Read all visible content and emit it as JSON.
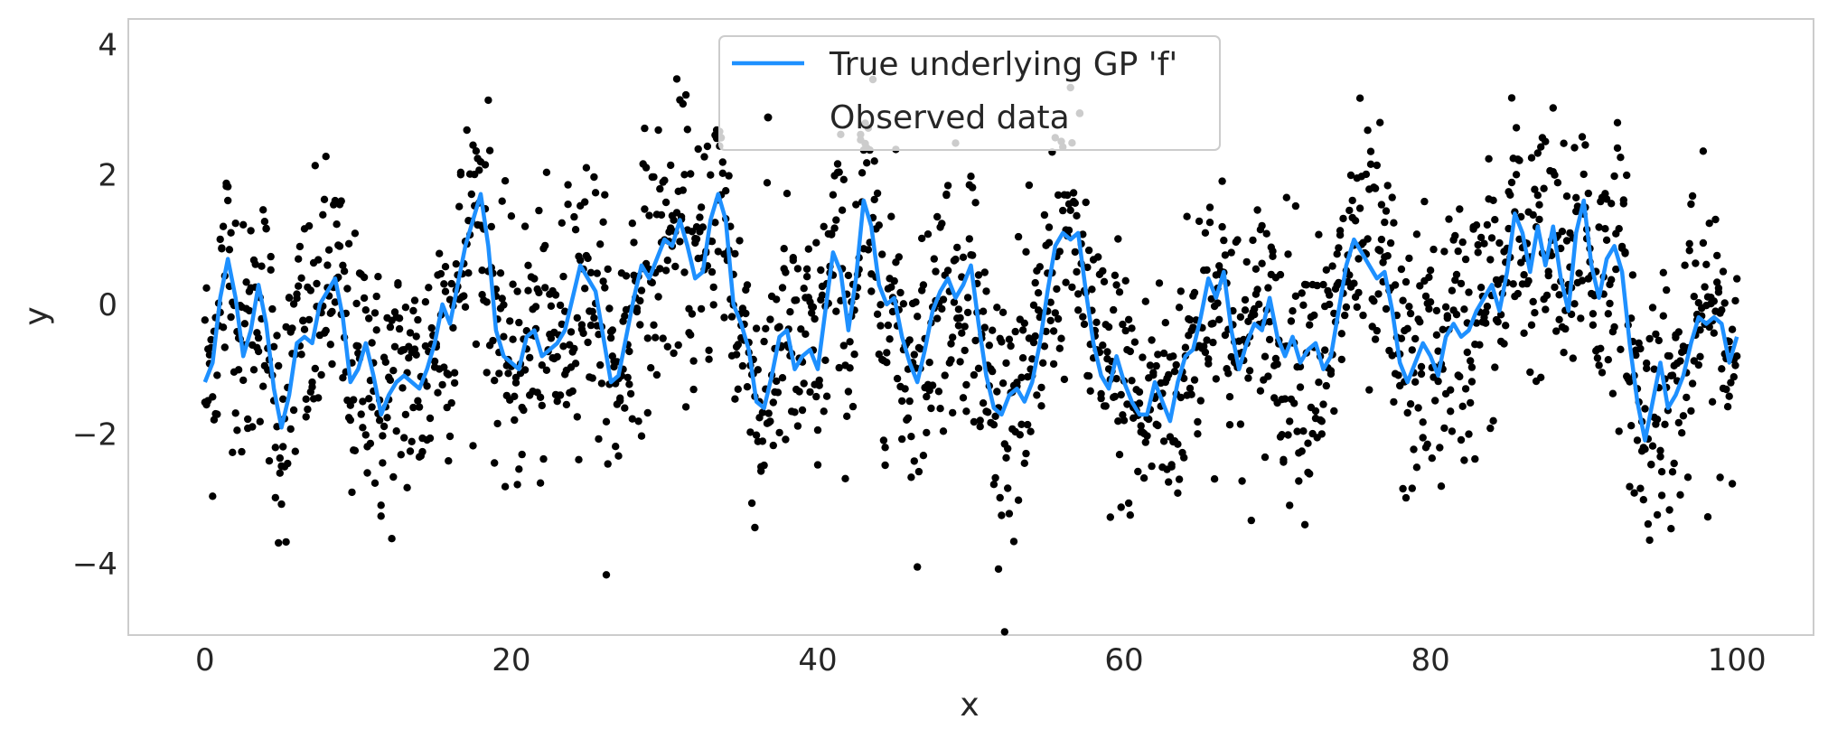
{
  "chart_data": {
    "type": "scatter",
    "xlabel": "x",
    "ylabel": "y",
    "xlim": [
      -5,
      105
    ],
    "ylim": [
      -5.1,
      4.4
    ],
    "x_ticks": [
      0,
      20,
      40,
      60,
      80,
      100
    ],
    "y_ticks": [
      -4,
      -2,
      0,
      2,
      4
    ],
    "x_tick_labels": [
      "0",
      "20",
      "40",
      "60",
      "80",
      "100"
    ],
    "y_tick_labels": [
      "−4",
      "−2",
      "0",
      "2",
      "4"
    ],
    "grid": false,
    "legend_position": "top-center",
    "series": [
      {
        "name": "True underlying GP 'f'",
        "kind": "line",
        "color": "#1e90ff",
        "x": [
          0,
          0.5,
          1,
          1.5,
          2,
          2.5,
          3,
          3.5,
          4,
          4.5,
          5,
          5.5,
          6,
          6.5,
          7,
          7.5,
          8,
          8.5,
          9,
          9.5,
          10,
          10.5,
          11,
          11.5,
          12,
          12.5,
          13,
          13.5,
          14,
          14.5,
          15,
          15.5,
          16,
          16.5,
          17,
          17.5,
          18,
          18.5,
          19,
          19.5,
          20,
          20.5,
          21,
          21.5,
          22,
          22.5,
          23,
          23.5,
          24,
          24.5,
          25,
          25.5,
          26,
          26.5,
          27,
          27.5,
          28,
          28.5,
          29,
          29.5,
          30,
          30.5,
          31,
          31.5,
          32,
          32.5,
          33,
          33.5,
          34,
          34.5,
          35,
          35.5,
          36,
          36.5,
          37,
          37.5,
          38,
          38.5,
          39,
          39.5,
          40,
          40.5,
          41,
          41.5,
          42,
          42.5,
          43,
          43.5,
          44,
          44.5,
          45,
          45.5,
          46,
          46.5,
          47,
          47.5,
          48,
          48.5,
          49,
          49.5,
          50,
          50.5,
          51,
          51.5,
          52,
          52.5,
          53,
          53.5,
          54,
          54.5,
          55,
          55.5,
          56,
          56.5,
          57,
          57.5,
          58,
          58.5,
          59,
          59.5,
          60,
          60.5,
          61,
          61.5,
          62,
          62.5,
          63,
          63.5,
          64,
          64.5,
          65,
          65.5,
          66,
          66.5,
          67,
          67.5,
          68,
          68.5,
          69,
          69.5,
          70,
          70.5,
          71,
          71.5,
          72,
          72.5,
          73,
          73.5,
          74,
          74.5,
          75,
          75.5,
          76,
          76.5,
          77,
          77.5,
          78,
          78.5,
          79,
          79.5,
          80,
          80.5,
          81,
          81.5,
          82,
          82.5,
          83,
          83.5,
          84,
          84.5,
          85,
          85.5,
          86,
          86.5,
          87,
          87.5,
          88,
          88.5,
          89,
          89.5,
          90,
          90.5,
          91,
          91.5,
          92,
          92.5,
          93,
          93.5,
          94,
          94.5,
          95,
          95.5,
          96,
          96.5,
          97,
          97.5,
          98,
          98.5,
          99,
          99.5,
          100
        ],
        "y": [
          -1.2,
          -0.9,
          0.1,
          0.7,
          0.1,
          -0.8,
          -0.4,
          0.3,
          -0.3,
          -1.3,
          -1.9,
          -1.4,
          -0.6,
          -0.5,
          -0.6,
          0.0,
          0.2,
          0.4,
          -0.2,
          -1.2,
          -1.0,
          -0.6,
          -1.1,
          -1.7,
          -1.4,
          -1.2,
          -1.1,
          -1.2,
          -1.3,
          -1.0,
          -0.6,
          0.0,
          -0.3,
          0.3,
          0.9,
          1.3,
          1.7,
          0.9,
          -0.4,
          -0.8,
          -0.9,
          -1.0,
          -0.5,
          -0.4,
          -0.8,
          -0.7,
          -0.6,
          -0.4,
          0.1,
          0.6,
          0.4,
          0.2,
          -0.5,
          -1.2,
          -1.1,
          -0.5,
          0.1,
          0.6,
          0.4,
          0.7,
          1.0,
          0.9,
          1.3,
          0.9,
          0.4,
          0.5,
          1.3,
          1.7,
          1.3,
          0.0,
          -0.3,
          -0.7,
          -1.5,
          -1.6,
          -1.1,
          -0.5,
          -0.4,
          -1.0,
          -0.8,
          -0.7,
          -1.0,
          -0.1,
          0.8,
          0.5,
          -0.4,
          0.4,
          1.6,
          1.2,
          0.3,
          0.0,
          0.1,
          -0.5,
          -0.9,
          -1.2,
          -0.7,
          -0.1,
          0.2,
          0.4,
          0.1,
          0.3,
          0.6,
          -0.3,
          -1.1,
          -1.6,
          -1.7,
          -1.4,
          -1.3,
          -1.5,
          -1.2,
          -0.6,
          0.2,
          0.9,
          1.1,
          1.0,
          1.1,
          0.2,
          -0.6,
          -1.1,
          -1.3,
          -0.8,
          -1.2,
          -1.5,
          -1.7,
          -1.7,
          -1.2,
          -1.5,
          -1.8,
          -1.2,
          -0.8,
          -0.7,
          -0.2,
          0.4,
          0.1,
          0.5,
          -0.4,
          -1.0,
          -0.6,
          -0.3,
          -0.4,
          0.1,
          -0.5,
          -0.8,
          -0.5,
          -0.9,
          -0.7,
          -0.6,
          -1.0,
          -0.8,
          -0.1,
          0.6,
          1.0,
          0.8,
          0.6,
          0.4,
          0.5,
          -0.1,
          -0.9,
          -1.2,
          -0.9,
          -0.6,
          -0.8,
          -1.1,
          -0.5,
          -0.3,
          -0.5,
          -0.4,
          -0.1,
          0.1,
          0.3,
          -0.1,
          0.5,
          1.4,
          1.1,
          0.5,
          1.2,
          0.6,
          1.2,
          0.4,
          -0.1,
          1.1,
          1.6,
          0.6,
          0.1,
          0.7,
          0.9,
          0.5,
          -0.6,
          -1.5,
          -2.1,
          -1.5,
          -0.9,
          -1.6,
          -1.4,
          -1.1,
          -0.6,
          -0.2,
          -0.3,
          -0.2,
          -0.3,
          -0.9,
          -0.5
        ]
      },
      {
        "name": "Observed data",
        "kind": "scatter",
        "color": "#000000",
        "points_per_x": 2,
        "x_step": 0.1,
        "noise_sd": 1.0,
        "note": "About 2000 noisy observations of f over x in [0, 100]"
      }
    ]
  }
}
